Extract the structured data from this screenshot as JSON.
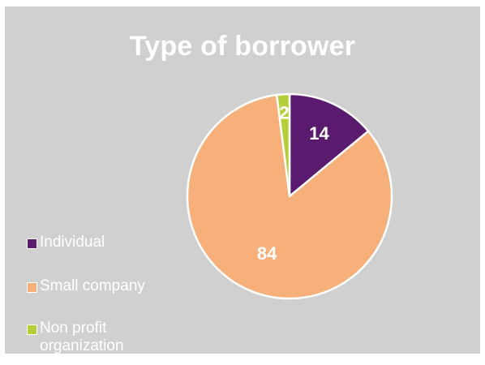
{
  "chart_data": {
    "type": "pie",
    "title": "Type of borrower",
    "categories": [
      "Individual",
      "Small company",
      "Non profit organization"
    ],
    "values": [
      14,
      84,
      2
    ],
    "data_labels": [
      "14",
      "84",
      "2"
    ],
    "colors": [
      "#5a1a6e",
      "#f8b07a",
      "#b5cf3a"
    ],
    "legend_position": "bottom-left",
    "start_angle_deg": 0,
    "direction": "clockwise"
  },
  "colors": {
    "background": "#d0d0d0",
    "text": "#ffffff",
    "slice_border": "#ffffff"
  }
}
